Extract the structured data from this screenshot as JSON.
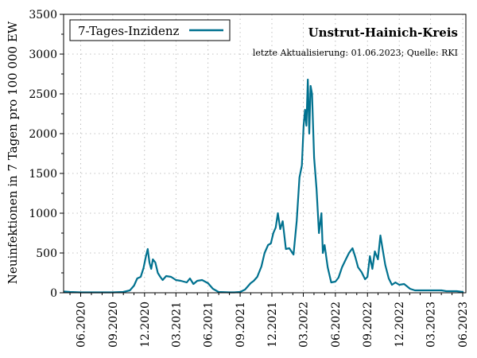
{
  "chart_data": {
    "type": "line",
    "title": "Unstrut-Hainich-Kreis",
    "subtitle": "letzte Aktualisierung: 01.06.2023; Quelle: RKI",
    "xlabel": "",
    "ylabel": "Neuinfektionen in 7 Tagen pro 100 000 EW",
    "ylim": [
      0,
      3500
    ],
    "yticks": [
      "0",
      "500",
      "1000",
      "1500",
      "2000",
      "2500",
      "3000",
      "3500"
    ],
    "xlim": [
      "2020-04-13",
      "2023-06-10"
    ],
    "xticks": [
      "06.2020",
      "09.2020",
      "12.2020",
      "03.2021",
      "06.2021",
      "09.2021",
      "12.2021",
      "03.2022",
      "06.2022",
      "09.2022",
      "12.2022",
      "03.2023",
      "06.2023"
    ],
    "grid": true,
    "legend_position": "top-left",
    "series": [
      {
        "name": "7-Tages-Inzidenz",
        "color": "#00718f",
        "x": [
          "2020-04-16",
          "2020-05-01",
          "2020-06-01",
          "2020-07-01",
          "2020-08-01",
          "2020-09-01",
          "2020-10-01",
          "2020-10-20",
          "2020-11-01",
          "2020-11-10",
          "2020-11-20",
          "2020-11-28",
          "2020-12-05",
          "2020-12-10",
          "2020-12-15",
          "2020-12-20",
          "2020-12-25",
          "2021-01-01",
          "2021-01-08",
          "2021-01-15",
          "2021-01-22",
          "2021-02-01",
          "2021-02-15",
          "2021-03-01",
          "2021-03-15",
          "2021-04-01",
          "2021-04-10",
          "2021-04-20",
          "2021-05-01",
          "2021-05-15",
          "2021-06-01",
          "2021-06-15",
          "2021-07-01",
          "2021-08-01",
          "2021-08-15",
          "2021-09-01",
          "2021-09-15",
          "2021-10-01",
          "2021-10-10",
          "2021-10-20",
          "2021-11-01",
          "2021-11-10",
          "2021-11-20",
          "2021-11-28",
          "2021-12-05",
          "2021-12-12",
          "2021-12-18",
          "2021-12-25",
          "2022-01-01",
          "2022-01-10",
          "2022-01-20",
          "2022-02-01",
          "2022-02-10",
          "2022-02-18",
          "2022-02-25",
          "2022-03-02",
          "2022-03-06",
          "2022-03-10",
          "2022-03-14",
          "2022-03-18",
          "2022-03-22",
          "2022-03-26",
          "2022-04-01",
          "2022-04-08",
          "2022-04-15",
          "2022-04-22",
          "2022-04-26",
          "2022-05-01",
          "2022-05-10",
          "2022-05-20",
          "2022-06-01",
          "2022-06-10",
          "2022-06-20",
          "2022-07-01",
          "2022-07-10",
          "2022-07-20",
          "2022-07-28",
          "2022-08-05",
          "2022-08-15",
          "2022-08-25",
          "2022-09-01",
          "2022-09-08",
          "2022-09-15",
          "2022-09-22",
          "2022-10-01",
          "2022-10-08",
          "2022-10-15",
          "2022-10-22",
          "2022-11-01",
          "2022-11-10",
          "2022-11-20",
          "2022-12-01",
          "2022-12-15",
          "2023-01-01",
          "2023-01-15",
          "2023-02-01",
          "2023-02-15",
          "2023-03-01",
          "2023-03-15",
          "2023-04-01",
          "2023-04-15",
          "2023-05-01",
          "2023-05-15",
          "2023-06-01"
        ],
        "values": [
          15,
          10,
          5,
          5,
          5,
          5,
          10,
          30,
          90,
          180,
          200,
          310,
          460,
          550,
          380,
          300,
          420,
          380,
          250,
          200,
          160,
          210,
          200,
          160,
          150,
          130,
          180,
          110,
          150,
          160,
          120,
          50,
          10,
          5,
          5,
          10,
          40,
          120,
          150,
          200,
          330,
          500,
          600,
          620,
          750,
          820,
          1000,
          800,
          900,
          550,
          560,
          480,
          900,
          1450,
          1600,
          2100,
          2300,
          2100,
          2680,
          2000,
          2600,
          2500,
          1700,
          1300,
          750,
          1000,
          500,
          600,
          320,
          130,
          140,
          190,
          320,
          420,
          500,
          560,
          450,
          320,
          260,
          170,
          200,
          460,
          300,
          520,
          420,
          720,
          530,
          350,
          180,
          100,
          130,
          100,
          110,
          50,
          30,
          30,
          30,
          30,
          30,
          30,
          20,
          20,
          20,
          10
        ]
      }
    ]
  }
}
